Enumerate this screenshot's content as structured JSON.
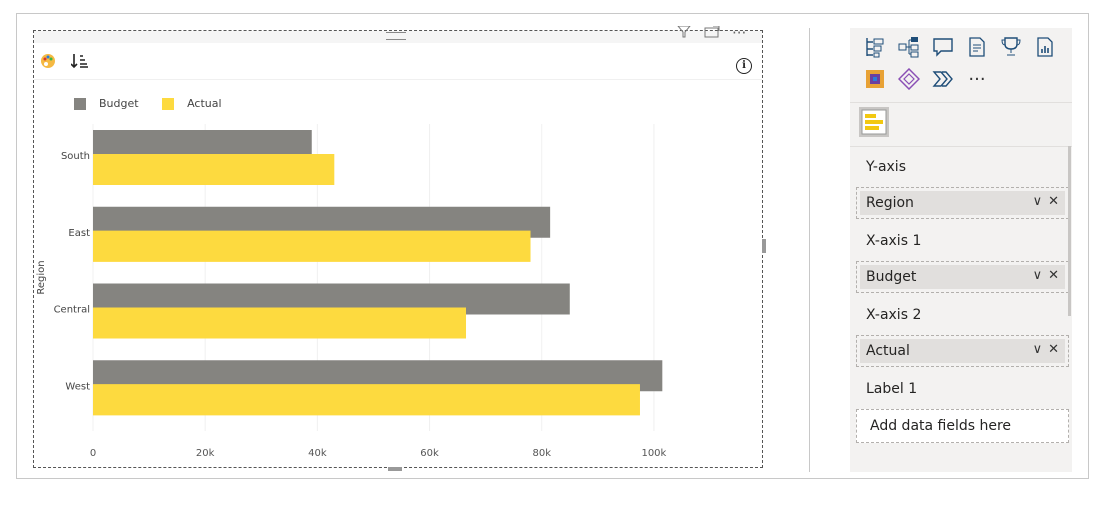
{
  "header": {
    "filter_icon": "filter-icon",
    "focus_icon": "focus-mode-icon",
    "more_label": "···"
  },
  "toolbar": {
    "format_icon": "palette-icon",
    "sort_icon": "sort-descending-icon",
    "info_label": "i"
  },
  "legend": [
    {
      "name": "Budget",
      "color": "#858480"
    },
    {
      "name": "Actual",
      "color": "#FDDA3F"
    }
  ],
  "chart_data": {
    "type": "bar",
    "orientation": "horizontal",
    "categories": [
      "South",
      "East",
      "Central",
      "West"
    ],
    "series": [
      {
        "name": "Budget",
        "values": [
          39000,
          81500,
          85000,
          101500
        ]
      },
      {
        "name": "Actual",
        "values": [
          43000,
          78000,
          66500,
          97500
        ]
      }
    ],
    "ylabel": "Region",
    "xlabel": "",
    "xlim": [
      0,
      110000
    ],
    "xticks": [
      0,
      20000,
      40000,
      60000,
      80000,
      100000
    ],
    "xtick_labels": [
      "0",
      "20k",
      "40k",
      "60k",
      "80k",
      "100k"
    ],
    "grid": true,
    "legend_position": "top-left"
  },
  "pane": {
    "viz_icons": [
      "matrix-tree-icon",
      "decomposition-tree-icon",
      "qa-icon",
      "smart-narrative-icon",
      "goals-icon",
      "paginated-report-icon",
      "power-apps-icon",
      "diamond-visual-icon",
      "power-automate-icon"
    ],
    "more_visuals_label": "···",
    "wells": [
      {
        "label": "Y-axis",
        "field": "Region"
      },
      {
        "label": "X-axis 1",
        "field": "Budget"
      },
      {
        "label": "X-axis 2",
        "field": "Actual"
      }
    ],
    "label_well": {
      "label": "Label 1",
      "placeholder": "Add data fields here"
    },
    "chevron_glyph": "∨",
    "remove_glyph": "✕"
  }
}
